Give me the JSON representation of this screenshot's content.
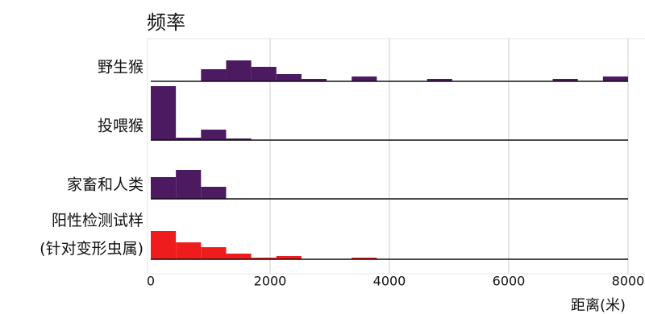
{
  "chart_data": {
    "type": "histogram",
    "title": "频率",
    "xlabel": "距离(米)",
    "bins": [
      0,
      421,
      842,
      1263,
      1684,
      2105,
      2526,
      2947,
      3368,
      3789,
      4211,
      4632,
      5053,
      5474,
      5895,
      6316,
      6737,
      7158,
      7579,
      8000
    ],
    "xlim": [
      0,
      8000
    ],
    "xticks": [
      0,
      2000,
      4000,
      6000,
      8000
    ],
    "ylim": [
      0,
      70
    ],
    "grid": true,
    "series": [
      {
        "name": "野生猴",
        "color": "#4b1a60",
        "values": [
          0,
          0,
          15,
          26,
          18,
          9,
          3,
          0,
          6,
          0,
          0,
          3,
          0,
          0,
          0,
          0,
          3,
          0,
          6
        ]
      },
      {
        "name": "投喂猴",
        "color": "#4b1a60",
        "values": [
          67,
          3,
          13,
          2,
          0,
          0,
          0,
          0,
          0,
          0,
          0,
          0,
          0,
          0,
          0,
          0,
          0,
          0,
          0
        ]
      },
      {
        "name": "家畜和人类",
        "color": "#4b1a60",
        "values": [
          27,
          36,
          15,
          0,
          0,
          0,
          0,
          0,
          0,
          0,
          0,
          0,
          0,
          0,
          0,
          0,
          0,
          0,
          0
        ]
      },
      {
        "name": "阳性检测试样\n(针对变形虫属)",
        "color": "#ee1c1c",
        "values": [
          35,
          21,
          15,
          7,
          2,
          4,
          0,
          0,
          2,
          0,
          0,
          0,
          0,
          0,
          0,
          0,
          0,
          0,
          0
        ]
      }
    ]
  }
}
